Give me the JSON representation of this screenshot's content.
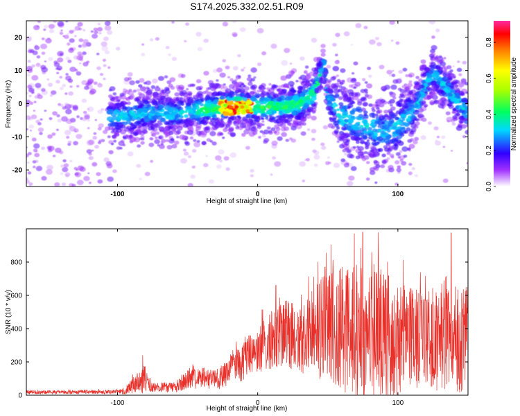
{
  "title": "S174.2025.332.02.51.R09",
  "chart_data": [
    {
      "type": "heatmap",
      "xlabel": "Height of straight line (km)",
      "ylabel": "Frequency (Hz)",
      "xlim": [
        -165,
        150
      ],
      "ylim": [
        -25,
        25
      ],
      "x_ticks": [
        "-100",
        "0",
        "100"
      ],
      "x_tick_values": [
        -100,
        0,
        100
      ],
      "y_ticks": [
        "20",
        "10",
        "0",
        "-10",
        "-20"
      ],
      "y_tick_values": [
        20,
        10,
        0,
        -10,
        -20
      ],
      "colorbar": {
        "label": "Normalized spectral amplitude",
        "range": [
          0,
          0.92
        ],
        "ticks": [
          "0.0",
          "0.2",
          "0.4",
          "0.6",
          "0.8"
        ],
        "tick_values": [
          0.0,
          0.2,
          0.4,
          0.6,
          0.8
        ]
      },
      "ridge": {
        "x": [
          -165,
          -130,
          -105,
          -100,
          -80,
          -60,
          -40,
          -25,
          -15,
          0,
          15,
          30,
          40,
          45,
          47,
          50,
          60,
          80,
          90,
          100,
          110,
          115,
          120,
          125,
          130,
          140,
          150
        ],
        "y": [
          0,
          0,
          -4,
          -4,
          -3,
          -3,
          -2,
          -1,
          0,
          -1,
          -1,
          0,
          3,
          10,
          12,
          2,
          -4,
          -7,
          -9,
          -7,
          -3,
          1,
          6,
          9,
          7,
          2,
          -3
        ]
      },
      "peak": {
        "x": -15,
        "y": -1,
        "amplitude": 0.9
      }
    },
    {
      "type": "line",
      "xlabel": "Height of straight line (km)",
      "ylabel": "SNR (10 * v/v)",
      "xlim": [
        -165,
        150
      ],
      "ylim": [
        0,
        1000
      ],
      "x_ticks": [
        "-100",
        "0",
        "100"
      ],
      "x_tick_values": [
        -100,
        0,
        100
      ],
      "y_ticks": [
        "0",
        "200",
        "400",
        "600",
        "800"
      ],
      "y_tick_values": [
        0,
        200,
        400,
        600,
        800
      ],
      "color": "#e8302a",
      "envelope": {
        "x": [
          -165,
          -100,
          -95,
          -85,
          -82,
          -75,
          -60,
          -50,
          -40,
          -30,
          -20,
          -10,
          0,
          10,
          20,
          30,
          40,
          50,
          60,
          70,
          80,
          90,
          100,
          110,
          120,
          130,
          140,
          150
        ],
        "mean": [
          18,
          20,
          25,
          80,
          110,
          50,
          45,
          90,
          105,
          90,
          140,
          220,
          270,
          330,
          370,
          350,
          390,
          400,
          390,
          390,
          380,
          360,
          340,
          350,
          320,
          350,
          340,
          330
        ],
        "amp": [
          12,
          12,
          25,
          60,
          100,
          30,
          30,
          60,
          60,
          60,
          90,
          130,
          140,
          180,
          200,
          220,
          260,
          350,
          380,
          420,
          450,
          380,
          350,
          300,
          300,
          320,
          330,
          320
        ]
      },
      "peaks": [
        {
          "x": -82,
          "y": 240
        },
        {
          "x": 13,
          "y": 660
        },
        {
          "x": 48,
          "y": 770
        },
        {
          "x": 75,
          "y": 980
        },
        {
          "x": 138,
          "y": 975
        }
      ]
    }
  ]
}
